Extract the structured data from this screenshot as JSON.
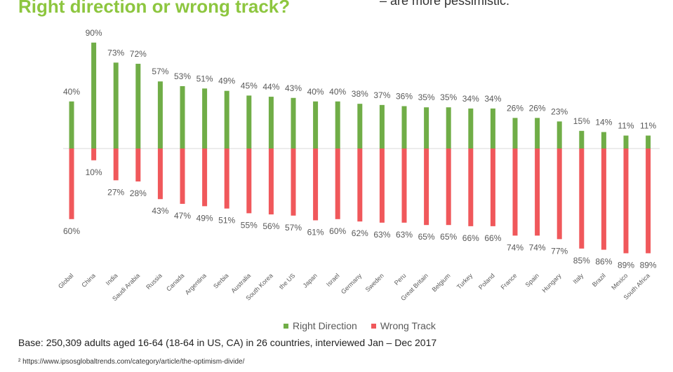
{
  "header": {
    "title": "Right direction or wrong track?",
    "top_note": "– are more pessimistic."
  },
  "chart_data": {
    "type": "bar",
    "title": "",
    "categories": [
      "Global",
      "China",
      "India",
      "Saudi Arabia",
      "Russia",
      "Canada",
      "Argentina",
      "Serbia",
      "Australia",
      "South Korea",
      "the US",
      "Japan",
      "Israel",
      "Germany",
      "Sweden",
      "Peru",
      "Great Britain",
      "Belgium",
      "Turkey",
      "Poland",
      "France",
      "Spain",
      "Hungary",
      "Italy",
      "Brazil",
      "Mexico",
      "South Africa"
    ],
    "series": [
      {
        "name": "Right Direction",
        "color": "#70ad47",
        "values": [
          40,
          90,
          73,
          72,
          57,
          53,
          51,
          49,
          45,
          44,
          43,
          40,
          40,
          38,
          37,
          36,
          35,
          35,
          34,
          34,
          26,
          26,
          23,
          15,
          14,
          11,
          11
        ]
      },
      {
        "name": "Wrong Track",
        "color": "#f0585b",
        "values": [
          60,
          10,
          27,
          28,
          43,
          47,
          49,
          51,
          55,
          56,
          57,
          61,
          60,
          62,
          63,
          63,
          65,
          65,
          66,
          66,
          74,
          74,
          77,
          85,
          86,
          89,
          89
        ]
      }
    ],
    "value_suffix": "%",
    "wrong_track_plotted_below_axis": true,
    "legend_position": "bottom",
    "grid": false
  },
  "legend": {
    "items": [
      {
        "label": "Right Direction",
        "color": "#70ad47"
      },
      {
        "label": "Wrong Track",
        "color": "#f0585b"
      }
    ]
  },
  "footer": {
    "base": "Base: 250,309 adults aged 16-64 (18-64 in US, CA) in 26 countries, interviewed Jan – Dec 2017",
    "footnote": "² https://www.ipsosglobaltrends.com/category/article/the-optimism-divide/"
  }
}
